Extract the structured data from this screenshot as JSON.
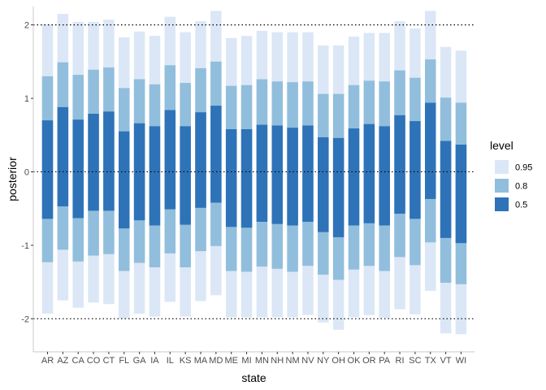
{
  "chart_data": {
    "type": "bar",
    "subtype": "stacked-interval",
    "xlabel": "state",
    "ylabel": "posterior",
    "ylim": [
      -2.45,
      2.25
    ],
    "yticks": [
      -2,
      -1,
      0,
      1,
      2
    ],
    "reference_lines": [
      -2,
      0,
      2
    ],
    "grid": false,
    "legend_position": "right",
    "legend": {
      "title": "level",
      "entries": [
        {
          "label": "0.95",
          "color": "#dbe7f6"
        },
        {
          "label": "0.8",
          "color": "#91bedc"
        },
        {
          "label": "0.5",
          "color": "#2e73b8"
        }
      ]
    },
    "categories": [
      "AR",
      "AZ",
      "CA",
      "CO",
      "CT",
      "FL",
      "GA",
      "IA",
      "IL",
      "KS",
      "MA",
      "MD",
      "ME",
      "MI",
      "MN",
      "NH",
      "NM",
      "NV",
      "NY",
      "OH",
      "OK",
      "OR",
      "PA",
      "RI",
      "SC",
      "TX",
      "VT",
      "WI"
    ],
    "series": [
      {
        "name": "0.95",
        "color": "#dbe7f6",
        "low": [
          -1.93,
          -1.75,
          -1.85,
          -1.78,
          -1.8,
          -2.0,
          -1.93,
          -1.97,
          -1.77,
          -1.97,
          -1.76,
          -1.68,
          -1.98,
          -1.98,
          -1.98,
          -1.98,
          -1.98,
          -1.95,
          -2.05,
          -2.15,
          -1.98,
          -1.95,
          -1.99,
          -1.87,
          -1.94,
          -1.62,
          -2.2,
          -2.21
        ],
        "high": [
          2.01,
          2.15,
          2.04,
          2.04,
          2.07,
          1.83,
          1.91,
          1.85,
          2.11,
          1.9,
          2.05,
          2.19,
          1.82,
          1.85,
          1.92,
          1.9,
          1.9,
          1.9,
          1.72,
          1.72,
          1.84,
          1.89,
          1.89,
          2.05,
          1.95,
          2.19,
          1.7,
          1.65
        ]
      },
      {
        "name": "0.8",
        "color": "#91bedc",
        "low": [
          -1.23,
          -1.06,
          -1.22,
          -1.14,
          -1.12,
          -1.35,
          -1.24,
          -1.3,
          -1.11,
          -1.3,
          -1.08,
          -1.01,
          -1.35,
          -1.36,
          -1.29,
          -1.32,
          -1.36,
          -1.28,
          -1.4,
          -1.47,
          -1.33,
          -1.28,
          -1.35,
          -1.16,
          -1.27,
          -0.96,
          -1.51,
          -1.53
        ],
        "high": [
          1.3,
          1.49,
          1.32,
          1.39,
          1.42,
          1.14,
          1.26,
          1.19,
          1.45,
          1.21,
          1.41,
          1.5,
          1.17,
          1.18,
          1.26,
          1.23,
          1.22,
          1.23,
          1.06,
          1.06,
          1.18,
          1.24,
          1.23,
          1.38,
          1.28,
          1.53,
          1.01,
          0.94
        ]
      },
      {
        "name": "0.5",
        "color": "#2e73b8",
        "low": [
          -0.64,
          -0.47,
          -0.63,
          -0.53,
          -0.53,
          -0.77,
          -0.66,
          -0.73,
          -0.51,
          -0.72,
          -0.49,
          -0.42,
          -0.75,
          -0.76,
          -0.68,
          -0.71,
          -0.73,
          -0.68,
          -0.82,
          -0.89,
          -0.73,
          -0.7,
          -0.73,
          -0.57,
          -0.64,
          -0.37,
          -0.9,
          -0.97
        ],
        "high": [
          0.7,
          0.88,
          0.71,
          0.79,
          0.82,
          0.55,
          0.66,
          0.62,
          0.84,
          0.62,
          0.81,
          0.9,
          0.58,
          0.58,
          0.64,
          0.63,
          0.6,
          0.63,
          0.47,
          0.46,
          0.59,
          0.65,
          0.62,
          0.77,
          0.69,
          0.94,
          0.42,
          0.37
        ]
      }
    ]
  }
}
